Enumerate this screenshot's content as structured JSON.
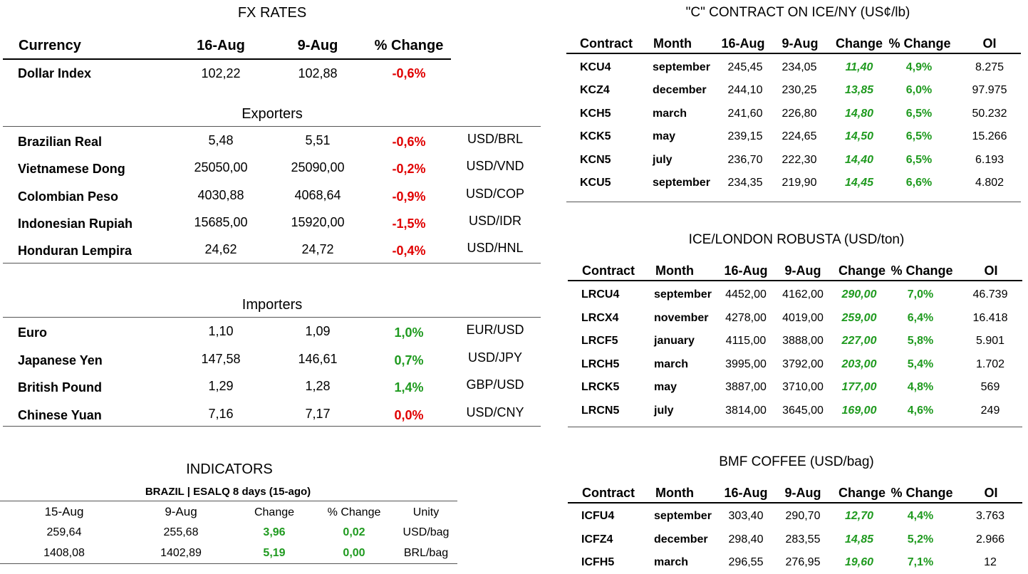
{
  "fx": {
    "title": "FX RATES",
    "headers": [
      "Currency",
      "16-Aug",
      "9-Aug",
      "% Change"
    ],
    "dollar_index": {
      "name": "Dollar Index",
      "cur": "102,22",
      "prev": "102,88",
      "pct": "-0,6%"
    },
    "exporters_title": "Exporters",
    "exporters": [
      {
        "name": "Brazilian Real",
        "cur": "5,48",
        "prev": "5,51",
        "pct": "-0,6%",
        "pair": "USD/BRL"
      },
      {
        "name": "Vietnamese Dong",
        "cur": "25050,00",
        "prev": "25090,00",
        "pct": "-0,2%",
        "pair": "USD/VND"
      },
      {
        "name": "Colombian Peso",
        "cur": "4030,88",
        "prev": "4068,64",
        "pct": "-0,9%",
        "pair": "USD/COP"
      },
      {
        "name": "Indonesian Rupiah",
        "cur": "15685,00",
        "prev": "15920,00",
        "pct": "-1,5%",
        "pair": "USD/IDR"
      },
      {
        "name": "Honduran Lempira",
        "cur": "24,62",
        "prev": "24,72",
        "pct": "-0,4%",
        "pair": "USD/HNL"
      }
    ],
    "importers_title": "Importers",
    "importers": [
      {
        "name": "Euro",
        "cur": "1,10",
        "prev": "1,09",
        "pct": "1,0%",
        "pair": "EUR/USD",
        "sign": "pos"
      },
      {
        "name": "Japanese Yen",
        "cur": "147,58",
        "prev": "146,61",
        "pct": "0,7%",
        "pair": "USD/JPY",
        "sign": "pos"
      },
      {
        "name": "British Pound",
        "cur": "1,29",
        "prev": "1,28",
        "pct": "1,4%",
        "pair": "GBP/USD",
        "sign": "pos"
      },
      {
        "name": "Chinese Yuan",
        "cur": "7,16",
        "prev": "7,17",
        "pct": "0,0%",
        "pair": "USD/CNY",
        "sign": "neg"
      }
    ]
  },
  "indicators": {
    "title": "INDICATORS",
    "subtitle": "BRAZIL | ESALQ 8 days (15-ago)",
    "headers": [
      "15-Aug",
      "9-Aug",
      "Change",
      "% Change",
      "Unity"
    ],
    "rows": [
      [
        "259,64",
        "255,68",
        "3,96",
        "0,02",
        "USD/bag"
      ],
      [
        "1408,08",
        "1402,89",
        "5,19",
        "0,00",
        "BRL/bag"
      ]
    ]
  },
  "contract_headers": [
    "Contract",
    "Month",
    "16-Aug",
    "9-Aug",
    "Change",
    "% Change",
    "OI"
  ],
  "c_contract": {
    "title": "\"C\" CONTRACT ON ICE/NY (US¢/lb)",
    "rows": [
      [
        "KCU4",
        "september",
        "245,45",
        "234,05",
        "11,40",
        "4,9%",
        "8.275"
      ],
      [
        "KCZ4",
        "december",
        "244,10",
        "230,25",
        "13,85",
        "6,0%",
        "97.975"
      ],
      [
        "KCH5",
        "march",
        "241,60",
        "226,80",
        "14,80",
        "6,5%",
        "50.232"
      ],
      [
        "KCK5",
        "may",
        "239,15",
        "224,65",
        "14,50",
        "6,5%",
        "15.266"
      ],
      [
        "KCN5",
        "july",
        "236,70",
        "222,30",
        "14,40",
        "6,5%",
        "6.193"
      ],
      [
        "KCU5",
        "september",
        "234,35",
        "219,90",
        "14,45",
        "6,6%",
        "4.802"
      ]
    ]
  },
  "robusta": {
    "title": "ICE/LONDON ROBUSTA (USD/ton)",
    "rows": [
      [
        "LRCU4",
        "september",
        "4452,00",
        "4162,00",
        "290,00",
        "7,0%",
        "46.739"
      ],
      [
        "LRCX4",
        "november",
        "4278,00",
        "4019,00",
        "259,00",
        "6,4%",
        "16.418"
      ],
      [
        "LRCF5",
        "january",
        "4115,00",
        "3888,00",
        "227,00",
        "5,8%",
        "5.901"
      ],
      [
        "LRCH5",
        "march",
        "3995,00",
        "3792,00",
        "203,00",
        "5,4%",
        "1.702"
      ],
      [
        "LRCK5",
        "may",
        "3887,00",
        "3710,00",
        "177,00",
        "4,8%",
        "569"
      ],
      [
        "LRCN5",
        "july",
        "3814,00",
        "3645,00",
        "169,00",
        "4,6%",
        "249"
      ]
    ]
  },
  "bmf": {
    "title": "BMF COFFEE (USD/bag)",
    "rows": [
      [
        "ICFU4",
        "september",
        "303,40",
        "290,70",
        "12,70",
        "4,4%",
        "3.763"
      ],
      [
        "ICFZ4",
        "december",
        "298,40",
        "283,55",
        "14,85",
        "5,2%",
        "2.966"
      ],
      [
        "ICFH5",
        "march",
        "296,55",
        "276,95",
        "19,60",
        "7,1%",
        "12"
      ]
    ]
  },
  "colors": {
    "negative": "#e00000",
    "positive": "#1f9a1f"
  }
}
